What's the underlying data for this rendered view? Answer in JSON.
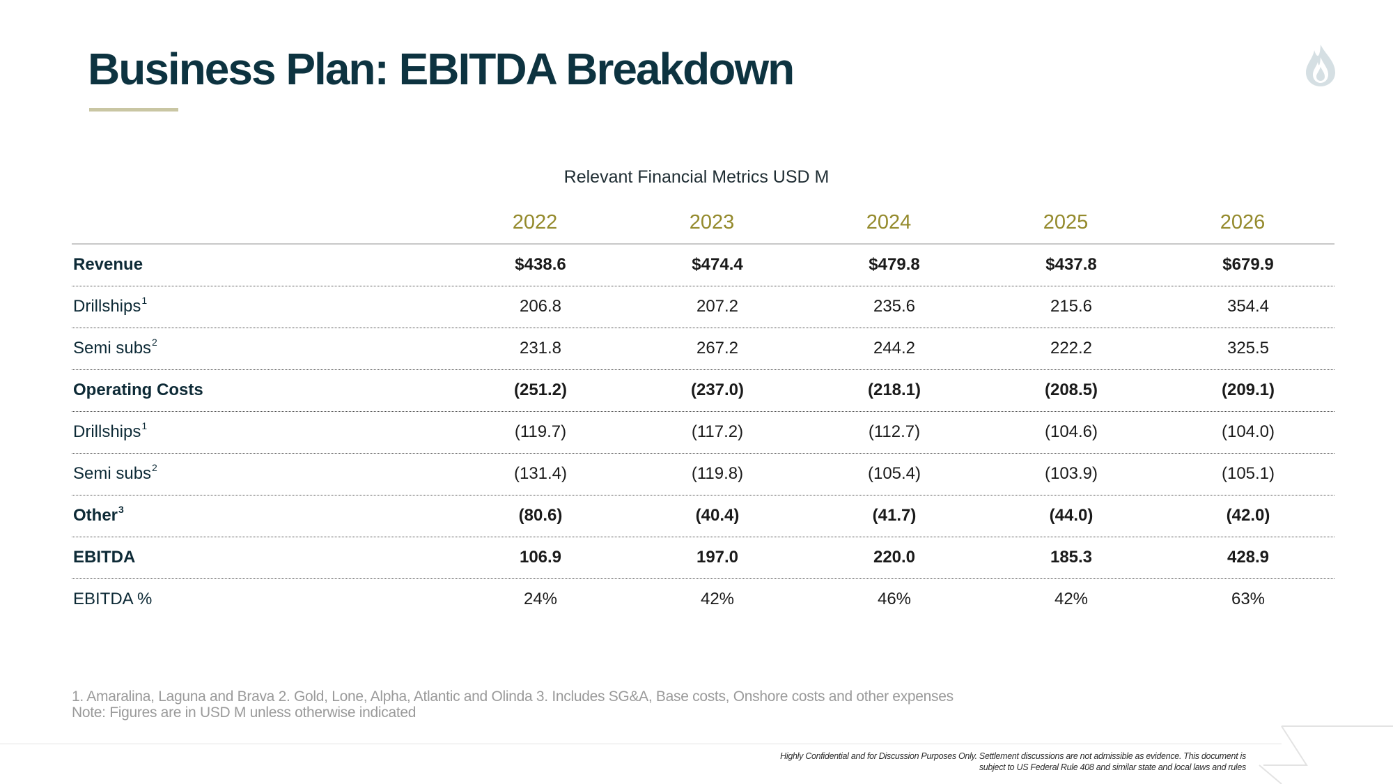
{
  "title": "Business Plan: EBITDA Breakdown",
  "table_title": "Relevant Financial Metrics USD M",
  "years": [
    "2022",
    "2023",
    "2024",
    "2025",
    "2026"
  ],
  "rows": [
    {
      "label": "Revenue",
      "sup": "",
      "bold": true,
      "values": [
        "$438.6",
        "$474.4",
        "$479.8",
        "$437.8",
        "$679.9"
      ]
    },
    {
      "label": "Drillships",
      "sup": "1",
      "bold": false,
      "values": [
        "206.8",
        "207.2",
        "235.6",
        "215.6",
        "354.4"
      ]
    },
    {
      "label": "Semi subs",
      "sup": "2",
      "bold": false,
      "values": [
        "231.8",
        "267.2",
        "244.2",
        "222.2",
        "325.5"
      ]
    },
    {
      "label": "Operating Costs",
      "sup": "",
      "bold": true,
      "values": [
        "(251.2)",
        "(237.0)",
        "(218.1)",
        "(208.5)",
        "(209.1)"
      ]
    },
    {
      "label": "Drillships",
      "sup": "1",
      "bold": false,
      "values": [
        "(119.7)",
        "(117.2)",
        "(112.7)",
        "(104.6)",
        "(104.0)"
      ]
    },
    {
      "label": "Semi subs",
      "sup": "2",
      "bold": false,
      "values": [
        "(131.4)",
        "(119.8)",
        "(105.4)",
        "(103.9)",
        "(105.1)"
      ]
    },
    {
      "label": "Other",
      "sup": "3",
      "bold": true,
      "values": [
        "(80.6)",
        "(40.4)",
        "(41.7)",
        "(44.0)",
        "(42.0)"
      ]
    },
    {
      "label": "EBITDA",
      "sup": "",
      "bold": true,
      "values": [
        "106.9",
        "197.0",
        "220.0",
        "185.3",
        "428.9"
      ]
    },
    {
      "label": "EBITDA %",
      "sup": "",
      "bold": false,
      "values": [
        "24%",
        "42%",
        "46%",
        "42%",
        "63%"
      ]
    }
  ],
  "footnotes": {
    "line1": "1. Amaralina, Laguna and Brava 2. Gold, Lone, Alpha, Atlantic and Olinda 3. Includes SG&A, Base costs, Onshore costs and other expenses",
    "line2": "Note: Figures are in USD M unless otherwise indicated"
  },
  "confidential": {
    "line1": "Highly Confidential and for Discussion Purposes Only. Settlement discussions are not admissible as evidence. This document  is",
    "line2": "subject to US Federal Rule 408 and similar state and local laws and rules"
  },
  "colors": {
    "title": "#0d3340",
    "year": "#948a2c",
    "accent_rule": "#c9c6a3",
    "footnote": "#9a9a9a"
  },
  "icons": {
    "logo": "flame-drop-logo-icon"
  }
}
